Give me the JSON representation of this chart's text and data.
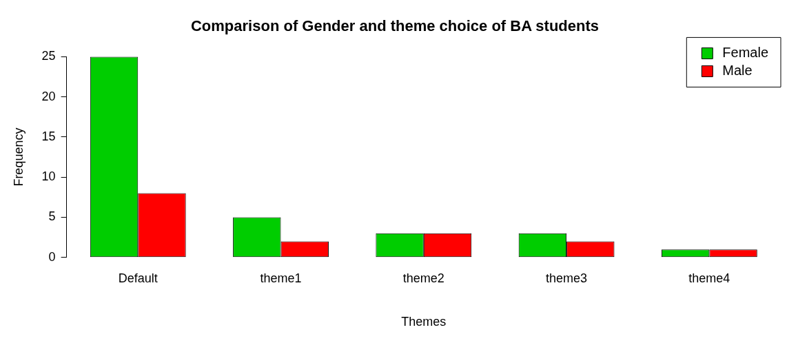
{
  "chart_data": {
    "type": "bar",
    "title": "Comparison of Gender and theme choice of BA students",
    "xlabel": "Themes",
    "ylabel": "Frequency",
    "categories": [
      "Default",
      "theme1",
      "theme2",
      "theme3",
      "theme4"
    ],
    "series": [
      {
        "name": "Female",
        "color": "#00cd00",
        "values": [
          25,
          5,
          3,
          3,
          1
        ]
      },
      {
        "name": "Male",
        "color": "#ff0000",
        "values": [
          8,
          2,
          3,
          2,
          1
        ]
      }
    ],
    "ylim": [
      0,
      25
    ],
    "yticks": [
      0,
      5,
      10,
      15,
      20,
      25
    ],
    "grid": false,
    "legend": "top right"
  }
}
